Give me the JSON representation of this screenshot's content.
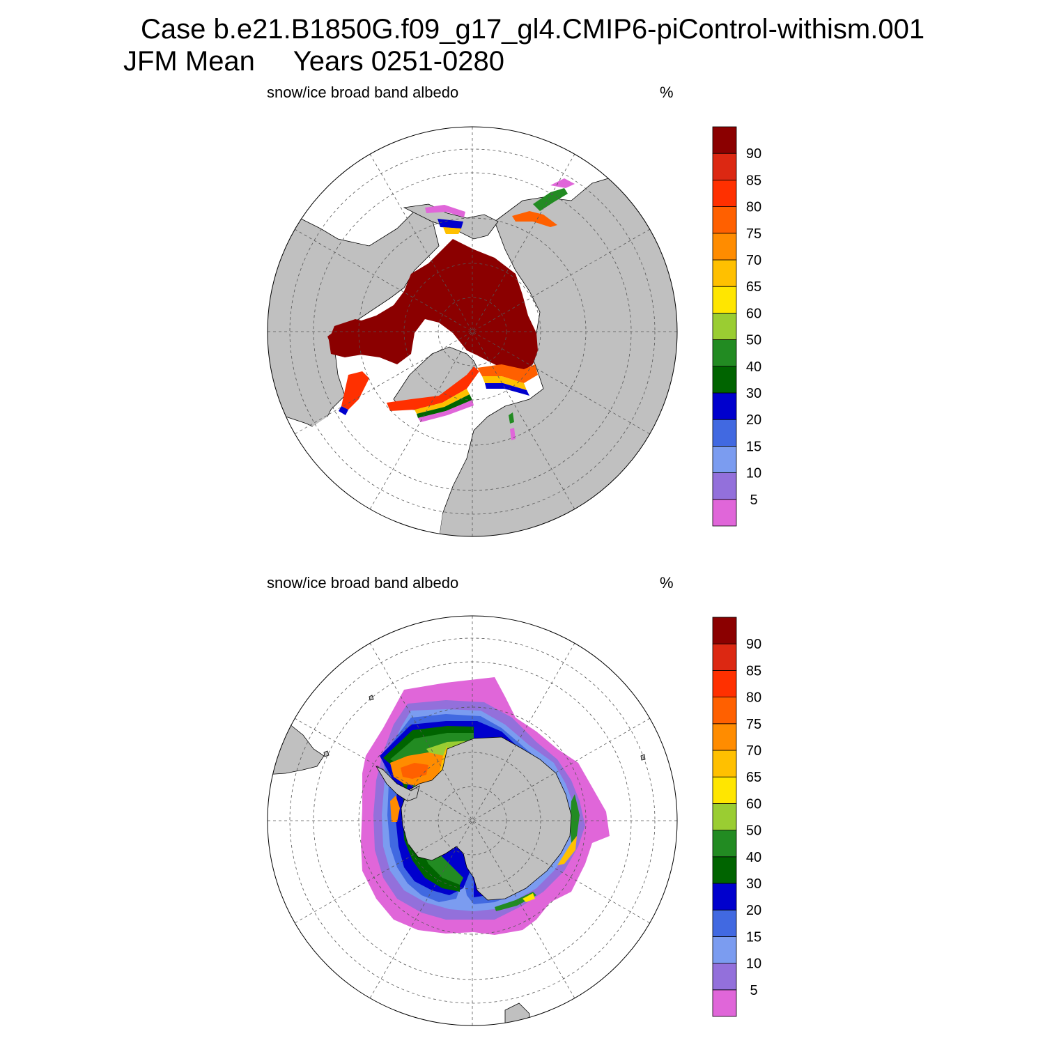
{
  "title": {
    "line1": "Case b.e21.B1850G.f09_g17_gl4.CMIP6-piControl-withism.001",
    "line2": "JFM Mean     Years 0251-0280"
  },
  "panels": [
    {
      "id": "north",
      "hemisphere": "Northern Hemisphere",
      "label": "snow/ice broad band albedo",
      "unit": "%"
    },
    {
      "id": "south",
      "hemisphere": "Southern Hemisphere",
      "label": "snow/ice broad band albedo",
      "unit": "%"
    }
  ],
  "colorbar": {
    "levels": [
      "5",
      "10",
      "15",
      "20",
      "30",
      "40",
      "50",
      "60",
      "65",
      "70",
      "75",
      "80",
      "85",
      "90"
    ],
    "colors": [
      "#e066d9",
      "#9370db",
      "#7b9cf0",
      "#4169e1",
      "#0000cd",
      "#006400",
      "#228b22",
      "#9acd32",
      "#ffe600",
      "#ffc000",
      "#ff8c00",
      "#ff6000",
      "#ff3000",
      "#dc2812",
      "#8b0000"
    ]
  },
  "map_style": {
    "land_color": "#c0c0c0",
    "background": "#ffffff",
    "grid_style": "dashed"
  }
}
